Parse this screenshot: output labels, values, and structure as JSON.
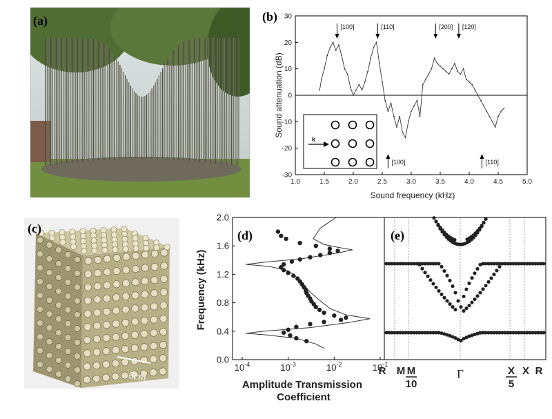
{
  "figure": {
    "panel_a_label": "(a)",
    "panel_b_label": "(b)",
    "panel_c_label": "(c)",
    "panel_d_label": "(d)",
    "panel_e_label": "(e)",
    "scale_bar_label": "6cm",
    "inset_k_label": "k"
  },
  "chart_data": [
    {
      "panel": "b",
      "type": "line",
      "xlabel": "Sound frequency (kHz)",
      "ylabel": "Sound attenuation (dB)",
      "xlim": [
        1.0,
        5.0
      ],
      "ylim": [
        -30,
        30
      ],
      "xticks": [
        "1.0",
        "1.5",
        "2.0",
        "2.5",
        "3.0",
        "3.5",
        "4.0",
        "4.5",
        "5.0"
      ],
      "yticks": [
        "-30",
        "-20",
        "-10",
        "0",
        "10",
        "20",
        "30"
      ],
      "zero_line": 0,
      "annotations_top": [
        {
          "label": "[100]",
          "x": 1.72
        },
        {
          "label": "[110]",
          "x": 2.42
        },
        {
          "label": "[200]",
          "x": 3.42
        },
        {
          "label": "[120]",
          "x": 3.82
        }
      ],
      "annotations_bottom": [
        {
          "label": "[100]",
          "x": 2.6
        },
        {
          "label": "[110]",
          "x": 4.22
        }
      ],
      "series": [
        {
          "x": [
            1.42,
            1.45,
            1.5,
            1.55,
            1.6,
            1.65,
            1.7,
            1.75,
            1.8,
            1.85,
            1.9,
            1.95,
            2.0,
            2.05,
            2.1,
            2.15,
            2.2,
            2.25,
            2.3,
            2.35,
            2.4,
            2.45,
            2.5,
            2.55,
            2.6,
            2.65,
            2.7,
            2.75,
            2.8,
            2.85,
            2.9,
            2.95,
            3.0,
            3.05,
            3.1,
            3.15,
            3.2,
            3.25,
            3.3,
            3.35,
            3.4,
            3.45,
            3.5,
            3.55,
            3.6,
            3.65,
            3.7,
            3.75,
            3.8,
            3.85,
            3.9,
            3.95,
            4.0,
            4.05,
            4.1,
            4.15,
            4.2,
            4.25,
            4.3,
            4.35,
            4.4,
            4.45,
            4.5,
            4.55,
            4.6
          ],
          "y": [
            2,
            6,
            10,
            15,
            18,
            20,
            17,
            19,
            15,
            10,
            8,
            3,
            0,
            2,
            4,
            2,
            5,
            9,
            14,
            18,
            20,
            12,
            5,
            -2,
            -6,
            -3,
            -8,
            -12,
            -8,
            -14,
            -16,
            -10,
            -6,
            -4,
            -2,
            -8,
            4,
            6,
            8,
            10,
            14,
            12,
            11,
            10,
            9,
            8,
            10,
            12,
            9,
            8,
            10,
            6,
            5,
            4,
            2,
            0,
            -2,
            -4,
            -6,
            -8,
            -10,
            -12,
            -8,
            -6,
            -5
          ]
        }
      ]
    },
    {
      "panel": "d",
      "type": "scatter",
      "xlabel": "Amplitude Transmission Coefficient",
      "ylabel": "Frequency (kHz)",
      "x_scale": "log",
      "xlim": [
        0.0001,
        0.1
      ],
      "ylim": [
        0.0,
        2.0
      ],
      "xticks": [
        "10-4",
        "10-3",
        "10-2",
        "10-1"
      ],
      "yticks": [
        "0.0",
        "0.4",
        "0.8",
        "1.2",
        "1.6",
        "2.0"
      ],
      "measured_points": [
        {
          "x": 0.0006,
          "y": 1.8
        },
        {
          "x": 0.0007,
          "y": 1.74
        },
        {
          "x": 0.0009,
          "y": 1.7
        },
        {
          "x": 0.0018,
          "y": 1.64
        },
        {
          "x": 0.004,
          "y": 1.6
        },
        {
          "x": 0.008,
          "y": 1.56
        },
        {
          "x": 0.012,
          "y": 1.53
        },
        {
          "x": 0.008,
          "y": 1.5
        },
        {
          "x": 0.005,
          "y": 1.47
        },
        {
          "x": 0.003,
          "y": 1.44
        },
        {
          "x": 0.0018,
          "y": 1.41
        },
        {
          "x": 0.0012,
          "y": 1.38
        },
        {
          "x": 0.0008,
          "y": 1.34
        },
        {
          "x": 0.0007,
          "y": 1.3
        },
        {
          "x": 0.0008,
          "y": 1.26
        },
        {
          "x": 0.001,
          "y": 1.22
        },
        {
          "x": 0.0013,
          "y": 1.18
        },
        {
          "x": 0.0016,
          "y": 1.14
        },
        {
          "x": 0.0018,
          "y": 1.1
        },
        {
          "x": 0.002,
          "y": 1.06
        },
        {
          "x": 0.0022,
          "y": 1.02
        },
        {
          "x": 0.0024,
          "y": 0.98
        },
        {
          "x": 0.0025,
          "y": 0.94
        },
        {
          "x": 0.0027,
          "y": 0.9
        },
        {
          "x": 0.003,
          "y": 0.86
        },
        {
          "x": 0.0032,
          "y": 0.82
        },
        {
          "x": 0.0036,
          "y": 0.78
        },
        {
          "x": 0.004,
          "y": 0.74
        },
        {
          "x": 0.0048,
          "y": 0.7
        },
        {
          "x": 0.006,
          "y": 0.66
        },
        {
          "x": 0.01,
          "y": 0.62
        },
        {
          "x": 0.018,
          "y": 0.59
        },
        {
          "x": 0.014,
          "y": 0.56
        },
        {
          "x": 0.006,
          "y": 0.53
        },
        {
          "x": 0.003,
          "y": 0.5
        },
        {
          "x": 0.0015,
          "y": 0.46
        },
        {
          "x": 0.001,
          "y": 0.42
        },
        {
          "x": 0.0008,
          "y": 0.38
        },
        {
          "x": 0.0011,
          "y": 0.34
        },
        {
          "x": 0.0015,
          "y": 0.3
        },
        {
          "x": 0.0025,
          "y": 0.26
        }
      ],
      "theory_curve": {
        "x": [
          0.011,
          0.005,
          0.0035,
          0.006,
          0.012,
          0.025,
          0.012,
          0.002,
          0.0003,
          0.00012,
          0.0004,
          0.001,
          0.0016,
          0.0022,
          0.003,
          0.0045,
          0.008,
          0.018,
          0.06,
          0.02,
          0.003,
          0.0003,
          0.00012,
          0.0003,
          0.0015,
          0.004,
          0.006
        ],
        "y": [
          2.0,
          1.85,
          1.7,
          1.62,
          1.58,
          1.545,
          1.5,
          1.42,
          1.37,
          1.34,
          1.31,
          1.25,
          1.15,
          1.05,
          0.95,
          0.85,
          0.72,
          0.63,
          0.575,
          0.52,
          0.45,
          0.4,
          0.37,
          0.35,
          0.3,
          0.22,
          0.16
        ]
      }
    },
    {
      "panel": "e",
      "type": "scatter",
      "ylim": [
        0.0,
        2.0
      ],
      "x_labels": [
        "R",
        "M",
        "M/10",
        "Γ",
        "X/5",
        "X",
        "R"
      ],
      "bands": [
        {
          "name": "",
          "kind": "flat",
          "y": 0.38,
          "dip_to": 0.25
        },
        {
          "name": "",
          "kind": "flat",
          "y": 1.35,
          "dip_to": 0.65
        },
        {
          "name": "",
          "kind": "parabola",
          "min": 1.62,
          "reach": 2.0
        }
      ]
    }
  ],
  "colors": {
    "marker": "#222222",
    "line": "#333333",
    "grid_dashed": "#888888",
    "sky": "#cdd6d6",
    "grass": "#6e8a3c",
    "tree": "#3f5a29",
    "cube_face": "#b9b191"
  }
}
